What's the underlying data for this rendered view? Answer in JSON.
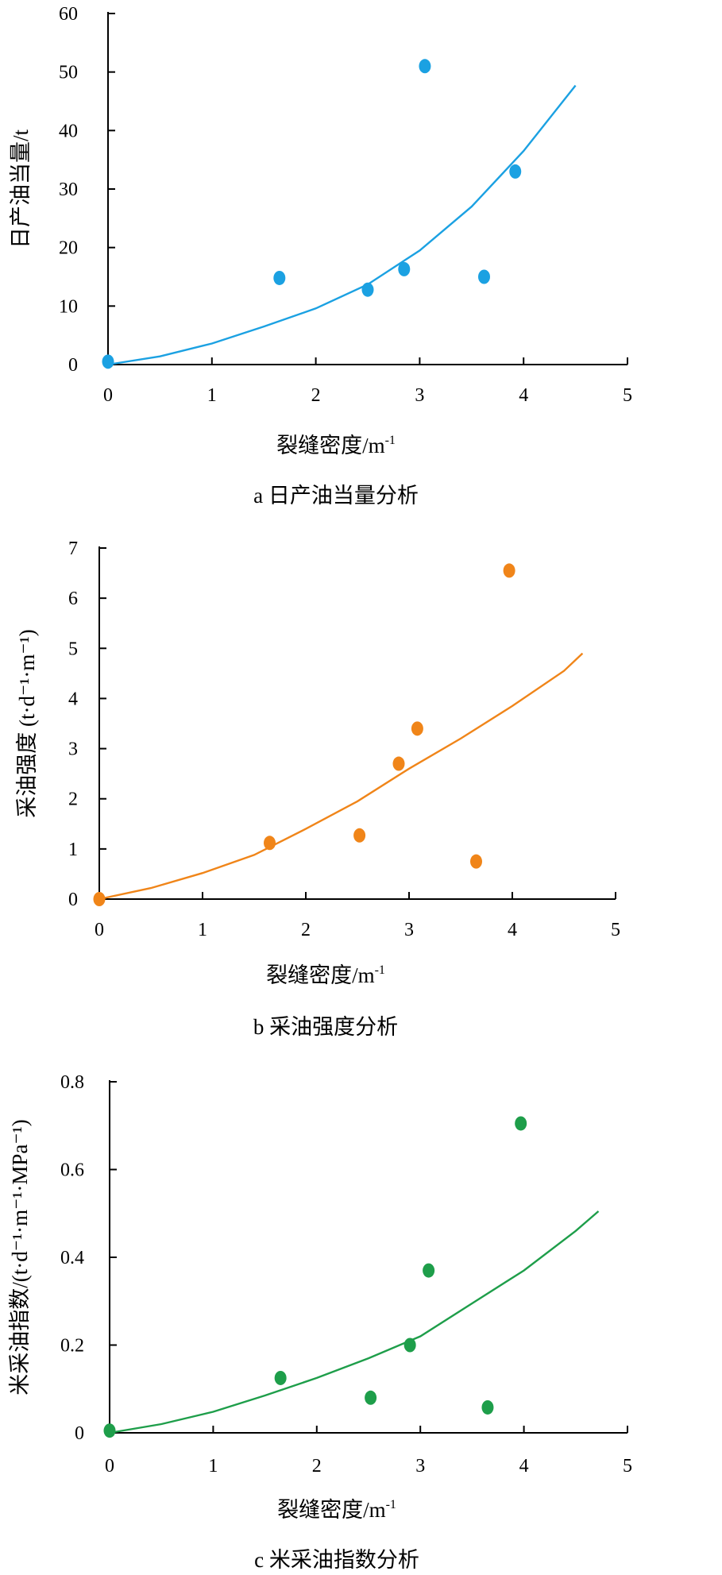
{
  "chart_data": [
    {
      "type": "scatter",
      "caption": "a 日产油当量分析",
      "xlabel": "裂缝密度/m",
      "xlabel_sup": "-1",
      "ylabel": "日产油当量/t",
      "xlim": [
        0,
        5
      ],
      "ylim": [
        0,
        60
      ],
      "xticks": [
        0,
        1,
        2,
        3,
        4,
        5
      ],
      "yticks": [
        0,
        10,
        20,
        30,
        40,
        50,
        60
      ],
      "color": "#1BA1E2",
      "grid": false,
      "legend": "none",
      "points": {
        "x": [
          0.0,
          1.65,
          2.5,
          2.85,
          3.05,
          3.62,
          3.92
        ],
        "y": [
          0.5,
          14.8,
          12.8,
          16.3,
          51.0,
          15.0,
          33.0
        ]
      },
      "trendline": {
        "x": [
          0.0,
          0.5,
          1.0,
          1.5,
          2.0,
          2.5,
          3.0,
          3.5,
          4.0,
          4.5
        ],
        "y": [
          0.0,
          1.4,
          3.6,
          6.5,
          9.6,
          13.7,
          19.5,
          27.0,
          36.5,
          47.7
        ]
      }
    },
    {
      "type": "scatter",
      "caption": "b 采油强度分析",
      "xlabel": "裂缝密度/m",
      "xlabel_sup": "-1",
      "ylabel": "采油强度 (t·d⁻¹·m⁻¹)",
      "xlim": [
        0,
        5
      ],
      "ylim": [
        0,
        7
      ],
      "xticks": [
        0,
        1,
        2,
        3,
        4,
        5
      ],
      "yticks": [
        0,
        1,
        2,
        3,
        4,
        5,
        6,
        7
      ],
      "color": "#F08519",
      "grid": false,
      "legend": "none",
      "points": {
        "x": [
          0.0,
          1.65,
          2.52,
          2.9,
          3.08,
          3.65,
          3.97
        ],
        "y": [
          0.0,
          1.12,
          1.27,
          2.7,
          3.4,
          0.75,
          6.55
        ]
      },
      "trendline": {
        "x": [
          0.0,
          0.5,
          1.0,
          1.5,
          2.0,
          2.5,
          3.0,
          3.5,
          4.0,
          4.5,
          4.68
        ],
        "y": [
          0.0,
          0.22,
          0.52,
          0.88,
          1.4,
          1.95,
          2.6,
          3.2,
          3.85,
          4.55,
          4.9
        ]
      }
    },
    {
      "type": "scatter",
      "caption": "c 米采油指数分析",
      "xlabel": "裂缝密度/m",
      "xlabel_sup": "-1",
      "ylabel": "米采油指数/(t·d⁻¹·m⁻¹·MPa⁻¹)",
      "xlim": [
        0,
        5
      ],
      "ylim": [
        0,
        0.8
      ],
      "xticks": [
        0,
        1,
        2,
        3,
        4,
        5
      ],
      "yticks": [
        0,
        0.2,
        0.4,
        0.6,
        0.8
      ],
      "color": "#1E9E4A",
      "grid": false,
      "legend": "none",
      "points": {
        "x": [
          0.0,
          1.65,
          2.52,
          2.9,
          3.08,
          3.65,
          3.97
        ],
        "y": [
          0.005,
          0.125,
          0.08,
          0.2,
          0.37,
          0.058,
          0.705
        ]
      },
      "trendline": {
        "x": [
          0.0,
          0.5,
          1.0,
          1.5,
          2.0,
          2.5,
          3.0,
          3.5,
          4.0,
          4.5,
          4.72
        ],
        "y": [
          0.0,
          0.02,
          0.048,
          0.085,
          0.125,
          0.17,
          0.22,
          0.295,
          0.37,
          0.46,
          0.505
        ]
      }
    }
  ]
}
